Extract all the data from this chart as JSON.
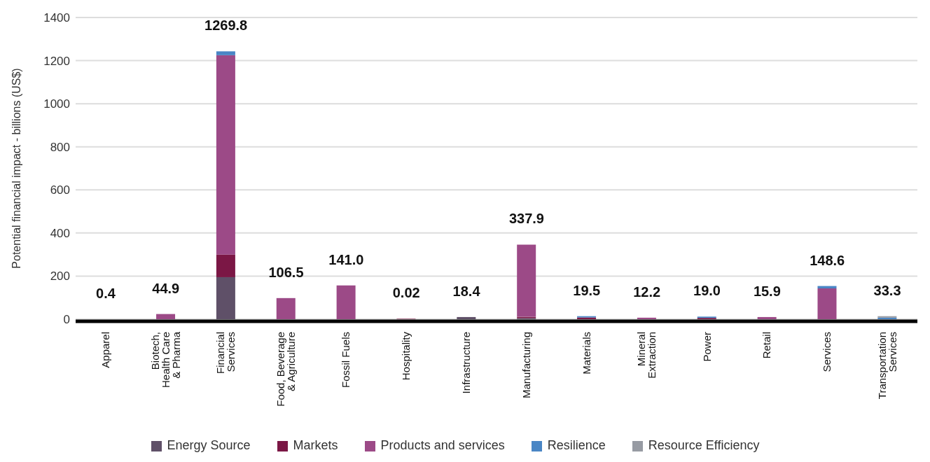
{
  "chart_data": {
    "type": "bar",
    "stacked": true,
    "ylabel": "Potential financial impact - billions (US$)",
    "categories": [
      "Apparel",
      "Biotech, Health Care & Pharma",
      "Financial Services",
      "Food, Beverage & Agriculture",
      "Fossil Fuels",
      "Hospitality",
      "Infrastructure",
      "Manufacturing",
      "Materials",
      "Mineral Extraction",
      "Power",
      "Retail",
      "Services",
      "Transportation Services"
    ],
    "series": [
      {
        "name": "Energy Source",
        "color": "#5f5068",
        "values": [
          0,
          0,
          195,
          0,
          0,
          0,
          10,
          5,
          0,
          0,
          0,
          0,
          0,
          0
        ]
      },
      {
        "name": "Markets",
        "color": "#7b1745",
        "values": [
          0,
          0,
          105,
          0,
          0,
          2,
          0,
          6,
          8,
          0,
          6,
          0,
          0,
          0
        ]
      },
      {
        "name": "Products and services",
        "color": "#9c4a87",
        "values": [
          0,
          24,
          925,
          98,
          157,
          0,
          0,
          335,
          0,
          7,
          0,
          10,
          143,
          0
        ]
      },
      {
        "name": "Resilience",
        "color": "#4a86c5",
        "values": [
          0,
          0,
          18,
          0,
          0,
          0,
          0,
          0,
          6,
          0,
          6,
          0,
          11,
          7
        ]
      },
      {
        "name": "Resource Efficiency",
        "color": "#979ba3",
        "values": [
          0,
          0,
          0,
          0,
          0,
          0,
          0,
          0,
          0,
          0,
          0,
          0,
          0,
          7
        ]
      }
    ],
    "annotations": [
      "0.4",
      "44.9",
      "1269.8",
      "106.5",
      "141.0",
      "0.02",
      "18.4",
      "337.9",
      "19.5",
      "12.2",
      "19.0",
      "15.9",
      "148.6",
      "33.3"
    ],
    "ylim": [
      0,
      1400
    ],
    "yticks": [
      0,
      200,
      400,
      600,
      800,
      1000,
      1200,
      1400
    ],
    "grid": "y",
    "legend": "bottom"
  }
}
